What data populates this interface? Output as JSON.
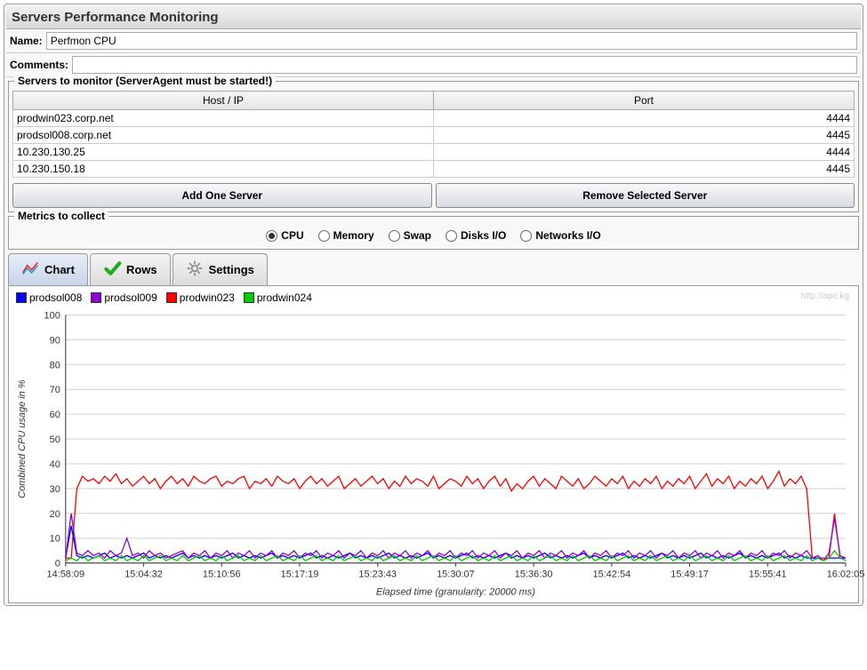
{
  "header": {
    "title": "Servers Performance Monitoring"
  },
  "fields": {
    "name_label": "Name:",
    "name_value": "Perfmon CPU",
    "comments_label": "Comments:",
    "comments_value": ""
  },
  "servers_section": {
    "legend": "Servers to monitor (ServerAgent must be started!)",
    "columns": {
      "host": "Host / IP",
      "port": "Port"
    },
    "rows": [
      {
        "host": "prodwin023.corp.net",
        "port": "4444"
      },
      {
        "host": "prodsol008.corp.net",
        "port": "4445"
      },
      {
        "host": "10.230.130.25",
        "port": "4444"
      },
      {
        "host": "10.230.150.18",
        "port": "4445"
      }
    ],
    "add_button": "Add One Server",
    "remove_button": "Remove Selected Server"
  },
  "metrics_section": {
    "legend": "Metrics to collect",
    "options": [
      {
        "label": "CPU",
        "checked": true
      },
      {
        "label": "Memory",
        "checked": false
      },
      {
        "label": "Swap",
        "checked": false
      },
      {
        "label": "Disks I/O",
        "checked": false
      },
      {
        "label": "Networks I/O",
        "checked": false
      }
    ]
  },
  "tabs": [
    {
      "label": "Chart",
      "icon": "chart-icon",
      "active": true
    },
    {
      "label": "Rows",
      "icon": "check-icon",
      "active": false
    },
    {
      "label": "Settings",
      "icon": "gear-icon",
      "active": false
    }
  ],
  "chart": {
    "watermark": "http://apc.kg",
    "legend": [
      {
        "label": "prodsol008",
        "color": "#0000ff"
      },
      {
        "label": "prodsol009",
        "color": "#9400d3"
      },
      {
        "label": "prodwin023",
        "color": "#ff0000"
      },
      {
        "label": "prodwin024",
        "color": "#00cc00"
      }
    ],
    "ylabel": "Combined CPU usage in %",
    "xlabel": "Elapsed time (granularity: 20000 ms)",
    "ylim": [
      0,
      100
    ],
    "ytick_step": 10,
    "xticks": [
      "14:58:09",
      "15:04:32",
      "15:10:56",
      "15:17:19",
      "15:23:43",
      "15:30:07",
      "15:36:30",
      "15:42:54",
      "15:49:17",
      "15:55:41",
      "16:02:05"
    ],
    "grid_color": "#d0d0d0",
    "label_fontsize": 11,
    "series": {
      "prodwin023": {
        "color": "#ff0000",
        "values": [
          2,
          2,
          30,
          35,
          33,
          34,
          32,
          35,
          33,
          36,
          32,
          34,
          31,
          33,
          35,
          32,
          34,
          30,
          33,
          35,
          32,
          34,
          31,
          35,
          33,
          32,
          34,
          35,
          31,
          33,
          32,
          34,
          35,
          30,
          33,
          32,
          34,
          31,
          35,
          33,
          32,
          34,
          30,
          33,
          35,
          32,
          34,
          31,
          33,
          35,
          30,
          32,
          34,
          31,
          33,
          35,
          32,
          34,
          30,
          33,
          31,
          35,
          32,
          34,
          33,
          31,
          35,
          30,
          32,
          34,
          33,
          31,
          35,
          32,
          34,
          30,
          33,
          35,
          31,
          34,
          29,
          32,
          30,
          33,
          35,
          31,
          34,
          32,
          30,
          35,
          33,
          31,
          34,
          30,
          32,
          35,
          33,
          31,
          34,
          32,
          35,
          30,
          33,
          31,
          34,
          32,
          35,
          30,
          33,
          31,
          34,
          32,
          35,
          30,
          33,
          36,
          31,
          34,
          32,
          35,
          30,
          33,
          31,
          34,
          32,
          35,
          30,
          33,
          37,
          31,
          34,
          32,
          35,
          30,
          2,
          2,
          2,
          2,
          20,
          2,
          2
        ]
      },
      "prodsol008": {
        "color": "#0000ff",
        "values": [
          2,
          15,
          3,
          2,
          3,
          2,
          3,
          4,
          2,
          3,
          2,
          3,
          2,
          3,
          4,
          2,
          3,
          2,
          3,
          2,
          3,
          4,
          2,
          3,
          2,
          3,
          2,
          3,
          2,
          3,
          4,
          2,
          3,
          2,
          3,
          2,
          3,
          4,
          2,
          3,
          2,
          3,
          2,
          3,
          4,
          2,
          3,
          2,
          3,
          2,
          3,
          4,
          2,
          3,
          2,
          3,
          2,
          3,
          4,
          2,
          3,
          2,
          3,
          2,
          3,
          4,
          2,
          3,
          2,
          3,
          2,
          3,
          4,
          2,
          3,
          2,
          3,
          2,
          3,
          4,
          2,
          3,
          2,
          3,
          2,
          3,
          4,
          2,
          3,
          2,
          3,
          2,
          3,
          4,
          2,
          3,
          2,
          3,
          2,
          3,
          4,
          2,
          3,
          2,
          3,
          2,
          3,
          4,
          2,
          3,
          2,
          3,
          2,
          3,
          4,
          2,
          3,
          2,
          3,
          2,
          3,
          4,
          2,
          3,
          2,
          3,
          2,
          3,
          4,
          2,
          3,
          2,
          3,
          2,
          2,
          2,
          1,
          2,
          2,
          2,
          2
        ]
      },
      "prodsol009": {
        "color": "#9400d3",
        "values": [
          2,
          20,
          4,
          3,
          5,
          3,
          4,
          2,
          5,
          3,
          4,
          10,
          3,
          4,
          2,
          5,
          3,
          4,
          2,
          3,
          4,
          5,
          2,
          4,
          3,
          5,
          2,
          4,
          3,
          5,
          2,
          4,
          3,
          5,
          2,
          4,
          3,
          5,
          2,
          4,
          3,
          5,
          2,
          4,
          3,
          5,
          2,
          4,
          3,
          5,
          2,
          4,
          3,
          5,
          2,
          4,
          3,
          5,
          2,
          4,
          3,
          5,
          2,
          4,
          3,
          5,
          2,
          4,
          3,
          5,
          2,
          4,
          3,
          5,
          2,
          4,
          3,
          5,
          2,
          4,
          3,
          5,
          2,
          4,
          3,
          5,
          2,
          4,
          3,
          5,
          2,
          4,
          3,
          5,
          2,
          4,
          3,
          5,
          2,
          4,
          3,
          5,
          2,
          4,
          3,
          5,
          2,
          4,
          3,
          5,
          2,
          4,
          3,
          5,
          2,
          4,
          3,
          5,
          2,
          4,
          3,
          5,
          2,
          4,
          3,
          5,
          2,
          4,
          3,
          5,
          2,
          4,
          3,
          5,
          2,
          3,
          1,
          4,
          18,
          3,
          2
        ]
      },
      "prodwin024": {
        "color": "#00cc00",
        "values": [
          1,
          2,
          1,
          3,
          1,
          2,
          3,
          1,
          2,
          1,
          3,
          1,
          2,
          1,
          3,
          1,
          2,
          3,
          1,
          2,
          1,
          3,
          1,
          2,
          3,
          1,
          2,
          1,
          3,
          1,
          2,
          3,
          1,
          2,
          1,
          3,
          1,
          2,
          3,
          1,
          2,
          1,
          3,
          1,
          2,
          3,
          1,
          2,
          1,
          3,
          1,
          2,
          3,
          1,
          2,
          1,
          3,
          1,
          2,
          3,
          1,
          2,
          1,
          3,
          1,
          2,
          3,
          1,
          2,
          1,
          3,
          1,
          2,
          3,
          1,
          2,
          1,
          3,
          1,
          2,
          3,
          1,
          2,
          1,
          3,
          1,
          2,
          3,
          1,
          2,
          1,
          3,
          1,
          2,
          3,
          1,
          2,
          1,
          3,
          1,
          2,
          3,
          1,
          2,
          1,
          3,
          1,
          2,
          3,
          1,
          2,
          1,
          3,
          1,
          2,
          3,
          1,
          2,
          1,
          3,
          1,
          2,
          3,
          1,
          2,
          1,
          3,
          1,
          2,
          3,
          1,
          2,
          1,
          3,
          1,
          2,
          1,
          2,
          5,
          2,
          1
        ]
      }
    }
  }
}
